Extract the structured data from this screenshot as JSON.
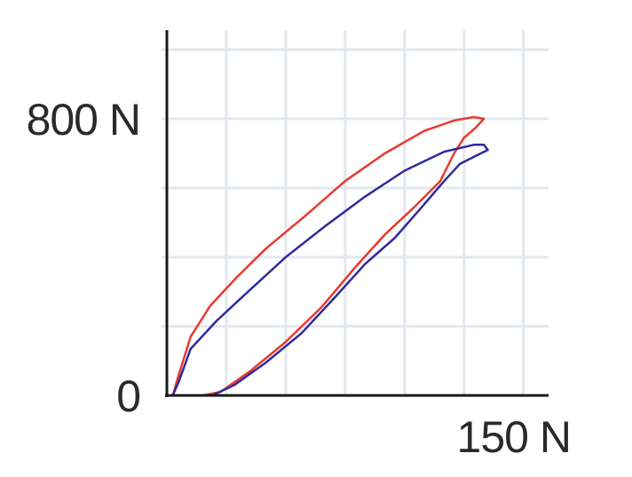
{
  "chart_data": {
    "type": "line",
    "title": "",
    "xlabel": "",
    "ylabel": "",
    "xlim": [
      0,
      190
    ],
    "ylim": [
      0,
      1000
    ],
    "grid": true,
    "x_tick_labels": [
      {
        "value": 150,
        "label": "150 N"
      }
    ],
    "y_tick_labels": [
      {
        "value": 0,
        "label": "0"
      },
      {
        "value": 800,
        "label": "800 N"
      }
    ],
    "series": [
      {
        "color": "#e8392f",
        "points": [
          [
            3,
            0
          ],
          [
            6,
            60
          ],
          [
            12,
            170
          ],
          [
            22,
            260
          ],
          [
            35,
            340
          ],
          [
            50,
            425
          ],
          [
            70,
            520
          ],
          [
            90,
            620
          ],
          [
            110,
            700
          ],
          [
            130,
            765
          ],
          [
            145,
            795
          ],
          [
            155,
            805
          ],
          [
            160,
            800
          ],
          [
            156,
            775
          ],
          [
            150,
            745
          ],
          [
            145,
            700
          ],
          [
            138,
            620
          ],
          [
            125,
            545
          ],
          [
            110,
            465
          ],
          [
            95,
            370
          ],
          [
            78,
            255
          ],
          [
            60,
            155
          ],
          [
            42,
            70
          ],
          [
            27,
            10
          ],
          [
            18,
            0
          ],
          [
            3,
            0
          ]
        ]
      },
      {
        "color": "#2e2a9e",
        "points": [
          [
            3,
            0
          ],
          [
            6,
            40
          ],
          [
            12,
            135
          ],
          [
            25,
            215
          ],
          [
            40,
            295
          ],
          [
            60,
            400
          ],
          [
            80,
            490
          ],
          [
            100,
            575
          ],
          [
            120,
            650
          ],
          [
            140,
            705
          ],
          [
            155,
            725
          ],
          [
            160,
            725
          ],
          [
            162,
            710
          ],
          [
            155,
            690
          ],
          [
            148,
            670
          ],
          [
            140,
            620
          ],
          [
            128,
            540
          ],
          [
            115,
            455
          ],
          [
            100,
            380
          ],
          [
            85,
            285
          ],
          [
            68,
            180
          ],
          [
            50,
            95
          ],
          [
            34,
            30
          ],
          [
            23,
            0
          ],
          [
            3,
            0
          ]
        ]
      }
    ]
  }
}
